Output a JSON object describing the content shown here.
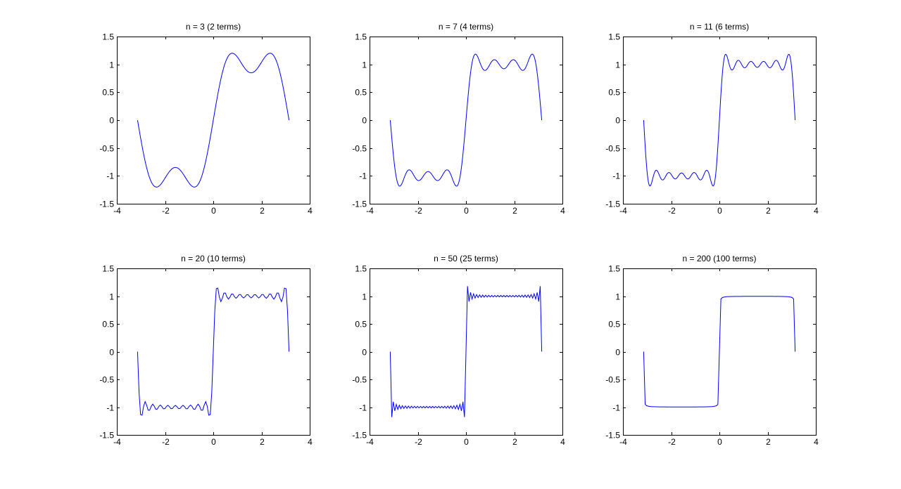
{
  "figure": {
    "background": "#ffffff",
    "axes_color": "#000000",
    "line_color": "#0000ff"
  },
  "chart_data": [
    {
      "type": "line",
      "title": "n = 3 (2 terms)",
      "n": 3,
      "terms": 2,
      "xlim": [
        -4,
        4
      ],
      "ylim": [
        -1.5,
        1.5
      ],
      "xticks": [
        "-4",
        "-2",
        "0",
        "2",
        "4"
      ],
      "yticks": [
        "1.5",
        "1",
        "0.5",
        "0",
        "-0.5",
        "-1",
        "-1.5"
      ],
      "series": [
        {
          "function": "square-wave Fourier partial sum, odd harmonics 1..n",
          "x_range": [
            -3.1416,
            3.1416
          ],
          "samples": 401
        }
      ]
    },
    {
      "type": "line",
      "title": "n = 7 (4 terms)",
      "n": 7,
      "terms": 4,
      "xlim": [
        -4,
        4
      ],
      "ylim": [
        -1.5,
        1.5
      ],
      "xticks": [
        "-4",
        "-2",
        "0",
        "2",
        "4"
      ],
      "yticks": [
        "1.5",
        "1",
        "0.5",
        "0",
        "-0.5",
        "-1",
        "-1.5"
      ],
      "series": [
        {
          "function": "square-wave Fourier partial sum, odd harmonics 1..n",
          "x_range": [
            -3.1416,
            3.1416
          ],
          "samples": 401
        }
      ]
    },
    {
      "type": "line",
      "title": "n = 11 (6 terms)",
      "n": 11,
      "terms": 6,
      "xlim": [
        -4,
        4
      ],
      "ylim": [
        -1.5,
        1.5
      ],
      "xticks": [
        "-4",
        "-2",
        "0",
        "2",
        "4"
      ],
      "yticks": [
        "1.5",
        "1",
        "0.5",
        "0",
        "-0.5",
        "-1",
        "-1.5"
      ],
      "series": [
        {
          "function": "square-wave Fourier partial sum, odd harmonics 1..n",
          "x_range": [
            -3.1416,
            3.1416
          ],
          "samples": 401
        }
      ]
    },
    {
      "type": "line",
      "title": "n = 20 (10 terms)",
      "n": 20,
      "terms": 10,
      "xlim": [
        -4,
        4
      ],
      "ylim": [
        -1.5,
        1.5
      ],
      "xticks": [
        "-4",
        "-2",
        "0",
        "2",
        "4"
      ],
      "yticks": [
        "1.5",
        "1",
        "0.5",
        "0",
        "-0.5",
        "-1",
        "-1.5"
      ],
      "series": [
        {
          "function": "square-wave Fourier partial sum, odd harmonics 1..n",
          "x_range": [
            -3.1416,
            3.1416
          ],
          "samples": 101
        }
      ]
    },
    {
      "type": "line",
      "title": "n = 50 (25 terms)",
      "n": 50,
      "terms": 25,
      "xlim": [
        -4,
        4
      ],
      "ylim": [
        -1.5,
        1.5
      ],
      "xticks": [
        "-4",
        "-2",
        "0",
        "2",
        "4"
      ],
      "yticks": [
        "1.5",
        "1",
        "0.5",
        "0",
        "-0.5",
        "-1",
        "-1.5"
      ],
      "series": [
        {
          "function": "square-wave Fourier partial sum, odd harmonics 1..n",
          "x_range": [
            -3.1416,
            3.1416
          ],
          "samples": 101
        }
      ]
    },
    {
      "type": "line",
      "title": "n = 200 (100 terms)",
      "n": 200,
      "terms": 100,
      "xlim": [
        -4,
        4
      ],
      "ylim": [
        -1.5,
        1.5
      ],
      "xticks": [
        "-4",
        "-2",
        "0",
        "2",
        "4"
      ],
      "yticks": [
        "1.5",
        "1",
        "0.5",
        "0",
        "-0.5",
        "-1",
        "-1.5"
      ],
      "series": [
        {
          "function": "square-wave Fourier partial sum, odd harmonics 1..n",
          "x_range": [
            -3.1416,
            3.1416
          ],
          "samples": 101
        }
      ]
    }
  ]
}
